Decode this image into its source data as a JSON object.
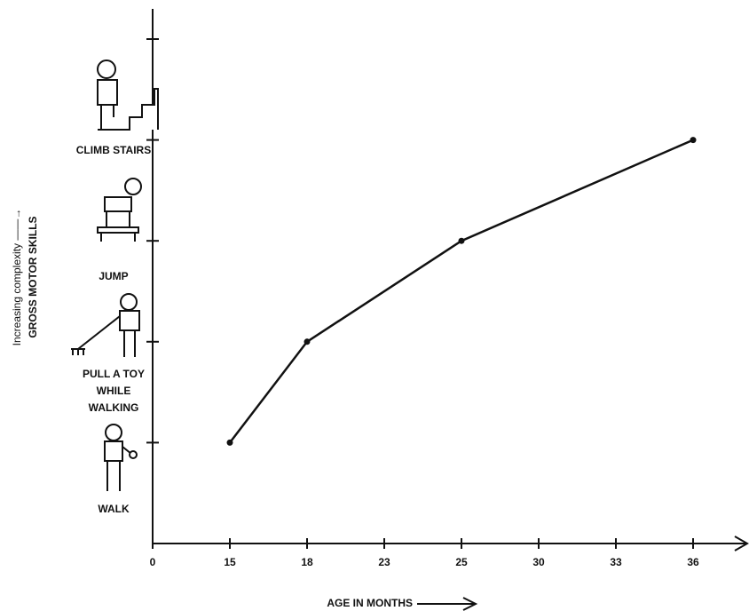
{
  "chart_data": {
    "type": "line",
    "y_label_lines": [
      "Increasing complexity ——→",
      "GROSS MOTOR SKILLS"
    ],
    "x_label": "AGE IN MONTHS",
    "categories": [
      "0",
      "15",
      "18",
      "23",
      "25",
      "30",
      "33",
      "36"
    ],
    "skills": [
      [
        "WALK"
      ],
      [
        "PULL A TOY",
        "WHILE",
        "WALKING"
      ],
      [
        "JUMP"
      ],
      [
        "CLIMB STAIRS"
      ]
    ],
    "series": [
      {
        "x": [
          "15",
          "18",
          "25",
          "36"
        ],
        "values": [
          1,
          2,
          3,
          4
        ],
        "color": "#111111"
      }
    ],
    "ylim": [
      0,
      5
    ],
    "yticks": [
      1,
      2,
      3,
      4,
      5
    ]
  }
}
